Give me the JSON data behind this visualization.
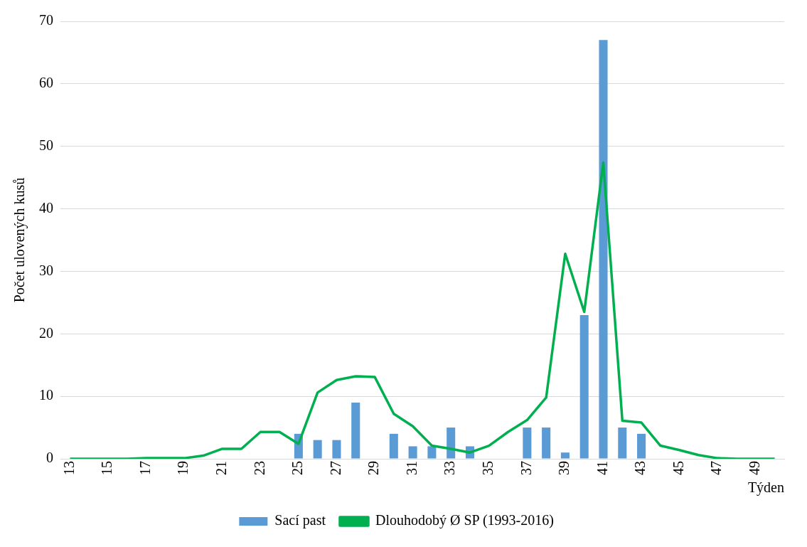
{
  "chart_data": {
    "type": "bar",
    "xlabel": "Týden",
    "ylabel": "Počet ulovených kusů",
    "categories": [
      "13",
      null,
      "15",
      null,
      "17",
      null,
      "19",
      null,
      "21",
      null,
      "23",
      null,
      "25",
      null,
      "27",
      null,
      "29",
      null,
      "31",
      null,
      "33",
      null,
      "35",
      null,
      "37",
      null,
      "39",
      null,
      "41",
      null,
      "43",
      null,
      "45",
      null,
      "47",
      null,
      "49",
      null
    ],
    "series": [
      {
        "name": "Sací past",
        "color": "#5b9bd5",
        "values": [
          null,
          null,
          null,
          null,
          null,
          null,
          null,
          null,
          null,
          null,
          null,
          null,
          4,
          3,
          3,
          9,
          null,
          4,
          2,
          2,
          5,
          2,
          null,
          null,
          5,
          5,
          1,
          23,
          67,
          5,
          4,
          null,
          null,
          null,
          null,
          null,
          null,
          null
        ]
      },
      {
        "name": "Dlouhodobý Ø SP (1993-2016)",
        "color": "#00b050",
        "type": "line",
        "values": [
          0,
          0,
          0,
          0,
          0.1,
          0.1,
          0.1,
          0.5,
          1.6,
          1.6,
          4.3,
          4.3,
          2.4,
          10.6,
          12.6,
          13.2,
          13.1,
          7.2,
          5.2,
          2.1,
          1.6,
          1.0,
          2.1,
          4.3,
          6.2,
          9.8,
          32.8,
          23.5,
          47.4,
          6.1,
          5.8,
          2.1,
          1.4,
          0.6,
          0.1,
          0,
          0,
          0
        ]
      }
    ],
    "ylim": [
      0,
      70
    ],
    "yticks": [
      0,
      10,
      20,
      30,
      40,
      50,
      60,
      70
    ],
    "grid": "y",
    "legend": "bottom"
  }
}
